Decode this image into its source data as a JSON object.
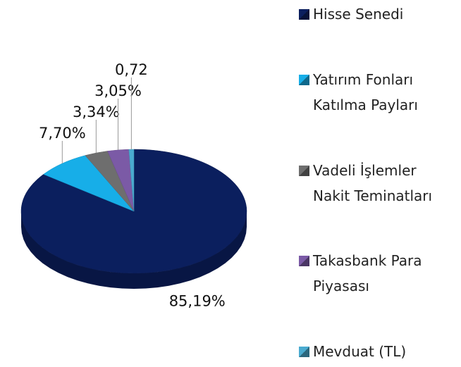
{
  "chart_data": {
    "type": "pie",
    "categories": [
      "Hisse Senedi",
      "Yatırım Fonları Katılma Payları",
      "Vadeli İşlemler Nakit Teminatları",
      "Takasbank Para Piyasası",
      "Mevduat (TL)"
    ],
    "values": [
      85.19,
      7.7,
      3.34,
      3.05,
      0.72
    ],
    "value_labels": [
      "85,19%",
      "7,70%",
      "3,34%",
      "3,05%",
      "0,72"
    ],
    "colors": [
      "#0b1f5e",
      "#17aee8",
      "#6e6e6e",
      "#7b5aa6",
      "#4aabd0"
    ],
    "legend": "right"
  }
}
